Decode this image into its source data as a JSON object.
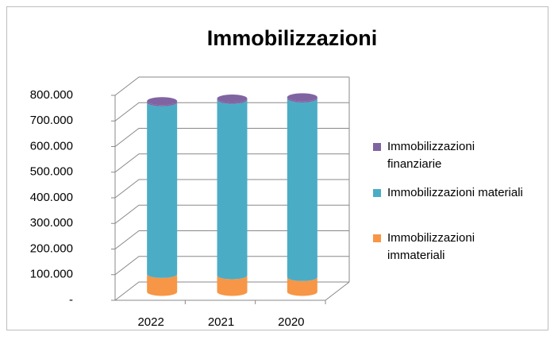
{
  "chart_data": {
    "type": "bar3d_cylinder_stacked",
    "title": "Immobilizzazioni",
    "categories": [
      "2022",
      "2021",
      "2020"
    ],
    "series": [
      {
        "name": "Immobilizzazioni immateriali",
        "color": "#f79646",
        "values": [
          70000,
          65000,
          58000
        ]
      },
      {
        "name": "Immobilizzazioni materiali",
        "color": "#4bacc6",
        "values": [
          670000,
          685000,
          697000
        ]
      },
      {
        "name": "Immobilizzazioni finanziarie",
        "color": "#8064a2",
        "values": [
          5000,
          5000,
          5000
        ]
      }
    ],
    "ylim": [
      0,
      800000
    ],
    "yticks": [
      {
        "value": 0,
        "label": "-"
      },
      {
        "value": 100000,
        "label": "100.000"
      },
      {
        "value": 200000,
        "label": "200.000"
      },
      {
        "value": 300000,
        "label": "300.000"
      },
      {
        "value": 400000,
        "label": "400.000"
      },
      {
        "value": 500000,
        "label": "500.000"
      },
      {
        "value": 600000,
        "label": "600.000"
      },
      {
        "value": 700000,
        "label": "700.000"
      },
      {
        "value": 800000,
        "label": "800.000"
      }
    ],
    "grid": true,
    "legend": "right"
  }
}
